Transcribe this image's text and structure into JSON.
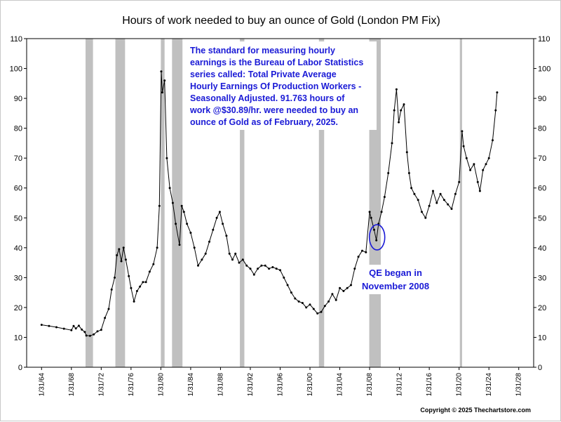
{
  "chart_data": {
    "type": "line",
    "title": "Hours of work needed to buy an ounce of Gold (London PM Fix)",
    "ylim": [
      0,
      110
    ],
    "y_ticks": [
      0,
      10,
      20,
      30,
      40,
      50,
      60,
      70,
      80,
      90,
      100,
      110
    ],
    "xlim": [
      1962,
      2030
    ],
    "x_tick_labels": [
      "1/31/64",
      "1/31/68",
      "1/31/72",
      "1/31/76",
      "1/31/80",
      "1/31/84",
      "1/31/88",
      "1/31/92",
      "1/31/96",
      "1/31/00",
      "1/31/04",
      "1/31/08",
      "1/31/12",
      "1/31/16",
      "1/31/20",
      "1/31/24",
      "1/31/28"
    ],
    "x_tick_years": [
      1964,
      1968,
      1972,
      1976,
      1980,
      1984,
      1988,
      1992,
      1996,
      2000,
      2004,
      2008,
      2012,
      2016,
      2020,
      2024,
      2028
    ],
    "recession_bands": [
      {
        "start": 1969.9,
        "end": 1970.9
      },
      {
        "start": 1973.9,
        "end": 1975.2
      },
      {
        "start": 1980.0,
        "end": 1980.5
      },
      {
        "start": 1981.5,
        "end": 1982.9
      },
      {
        "start": 1990.6,
        "end": 1991.2
      },
      {
        "start": 2001.2,
        "end": 2001.9
      },
      {
        "start": 2007.95,
        "end": 2009.5
      },
      {
        "start": 2020.1,
        "end": 2020.4
      }
    ],
    "series": [
      {
        "color": "#000000",
        "x": [
          1964.0,
          1965.0,
          1966.0,
          1967.0,
          1968.0,
          1968.3,
          1968.6,
          1969.0,
          1969.4,
          1969.8,
          1970.0,
          1970.5,
          1971.0,
          1971.5,
          1972.0,
          1972.5,
          1973.0,
          1973.4,
          1973.8,
          1974.1,
          1974.4,
          1974.7,
          1975.0,
          1975.3,
          1975.7,
          1976.0,
          1976.4,
          1976.8,
          1977.2,
          1977.6,
          1978.0,
          1978.5,
          1979.0,
          1979.5,
          1979.8,
          1980.05,
          1980.2,
          1980.5,
          1980.8,
          1981.2,
          1981.6,
          1982.0,
          1982.5,
          1982.8,
          1983.1,
          1983.5,
          1984.0,
          1984.5,
          1985.0,
          1985.5,
          1986.0,
          1986.5,
          1987.0,
          1987.5,
          1987.9,
          1988.3,
          1988.8,
          1989.2,
          1989.6,
          1990.0,
          1990.5,
          1991.0,
          1991.5,
          1992.0,
          1992.5,
          1993.0,
          1993.5,
          1994.0,
          1994.5,
          1995.0,
          1995.5,
          1996.0,
          1996.5,
          1997.0,
          1997.5,
          1998.0,
          1998.5,
          1999.0,
          1999.5,
          2000.0,
          2000.5,
          2001.0,
          2001.5,
          2002.0,
          2002.5,
          2003.0,
          2003.5,
          2004.0,
          2004.5,
          2005.0,
          2005.5,
          2006.0,
          2006.5,
          2007.0,
          2007.5,
          2008.0,
          2008.2,
          2008.6,
          2008.9,
          2009.2,
          2009.6,
          2010.0,
          2010.5,
          2011.0,
          2011.3,
          2011.6,
          2011.9,
          2012.2,
          2012.6,
          2013.0,
          2013.3,
          2013.6,
          2014.0,
          2014.5,
          2015.0,
          2015.5,
          2016.0,
          2016.5,
          2017.0,
          2017.5,
          2018.0,
          2018.5,
          2019.0,
          2019.5,
          2020.0,
          2020.4,
          2020.6,
          2021.0,
          2021.5,
          2022.0,
          2022.5,
          2022.8,
          2023.2,
          2023.6,
          2024.0,
          2024.5,
          2024.9,
          2025.1
        ],
        "values": [
          14.2,
          13.8,
          13.4,
          12.9,
          12.4,
          13.8,
          13.0,
          13.9,
          12.6,
          11.8,
          10.6,
          10.5,
          11.0,
          12.0,
          12.5,
          16.5,
          19.5,
          26.0,
          30.0,
          37.5,
          39.5,
          35.5,
          40.0,
          36.0,
          30.5,
          26.5,
          22.0,
          25.5,
          27.0,
          28.5,
          28.5,
          32.0,
          34.5,
          40.0,
          54.0,
          99.0,
          92.0,
          96.0,
          70.0,
          60.0,
          55.0,
          48.0,
          41.0,
          54.0,
          52.0,
          48.0,
          45.0,
          40.0,
          34.0,
          36.0,
          38.0,
          42.0,
          46.0,
          50.0,
          52.0,
          48.0,
          44.0,
          38.0,
          36.0,
          38.0,
          35.0,
          36.0,
          34.0,
          33.0,
          31.0,
          33.0,
          34.0,
          34.0,
          33.0,
          33.5,
          33.0,
          32.5,
          30.0,
          27.5,
          25.0,
          23.0,
          22.0,
          21.5,
          20.0,
          21.0,
          19.5,
          18.0,
          18.5,
          20.5,
          22.0,
          24.5,
          22.5,
          26.5,
          25.5,
          26.5,
          27.5,
          33.0,
          37.0,
          39.0,
          38.5,
          52.0,
          50.0,
          46.0,
          42.5,
          48.0,
          52.0,
          57.0,
          65.0,
          75.0,
          86.0,
          93.0,
          82.0,
          86.0,
          88.0,
          72.0,
          65.0,
          60.0,
          58.0,
          56.0,
          52.0,
          50.0,
          54.0,
          59.0,
          55.0,
          58.0,
          56.0,
          54.5,
          53.0,
          58.0,
          62.0,
          79.0,
          74.0,
          70.0,
          66.0,
          68.0,
          62.0,
          59.0,
          66.0,
          68.0,
          70.0,
          76.0,
          86.0,
          92.0
        ]
      }
    ],
    "annotation": "The standard for measuring hourly earnings is the Bureau of Labor Statistics series called:  Total Private Average Hourly Earnings Of Production Workers - Seasonally Adjusted.  91.763 hours of work @$30.89/hr. were needed to buy an ounce of Gold as of February, 2025.",
    "annotation_lines": [
      "The standard for measuring hourly",
      "earnings is the Bureau of Labor Statistics",
      "series called:  Total Private Average",
      "Hourly Earnings Of Production Workers -",
      "Seasonally Adjusted.  91.763 hours of",
      "work @$30.89/hr. were needed to buy an",
      "ounce of Gold as of February, 2025."
    ],
    "qe_label_lines": [
      "QE began in",
      "November 2008"
    ],
    "qe_highlight": {
      "x": 2009.0,
      "y": 43.5
    },
    "copyright": "Copyright © 2025 Thechartstore.com",
    "colors": {
      "recession_band": "#c0c0c0",
      "annotation_text": "#1a1ad6",
      "line": "#000000"
    },
    "grid": false,
    "legend": "none"
  }
}
